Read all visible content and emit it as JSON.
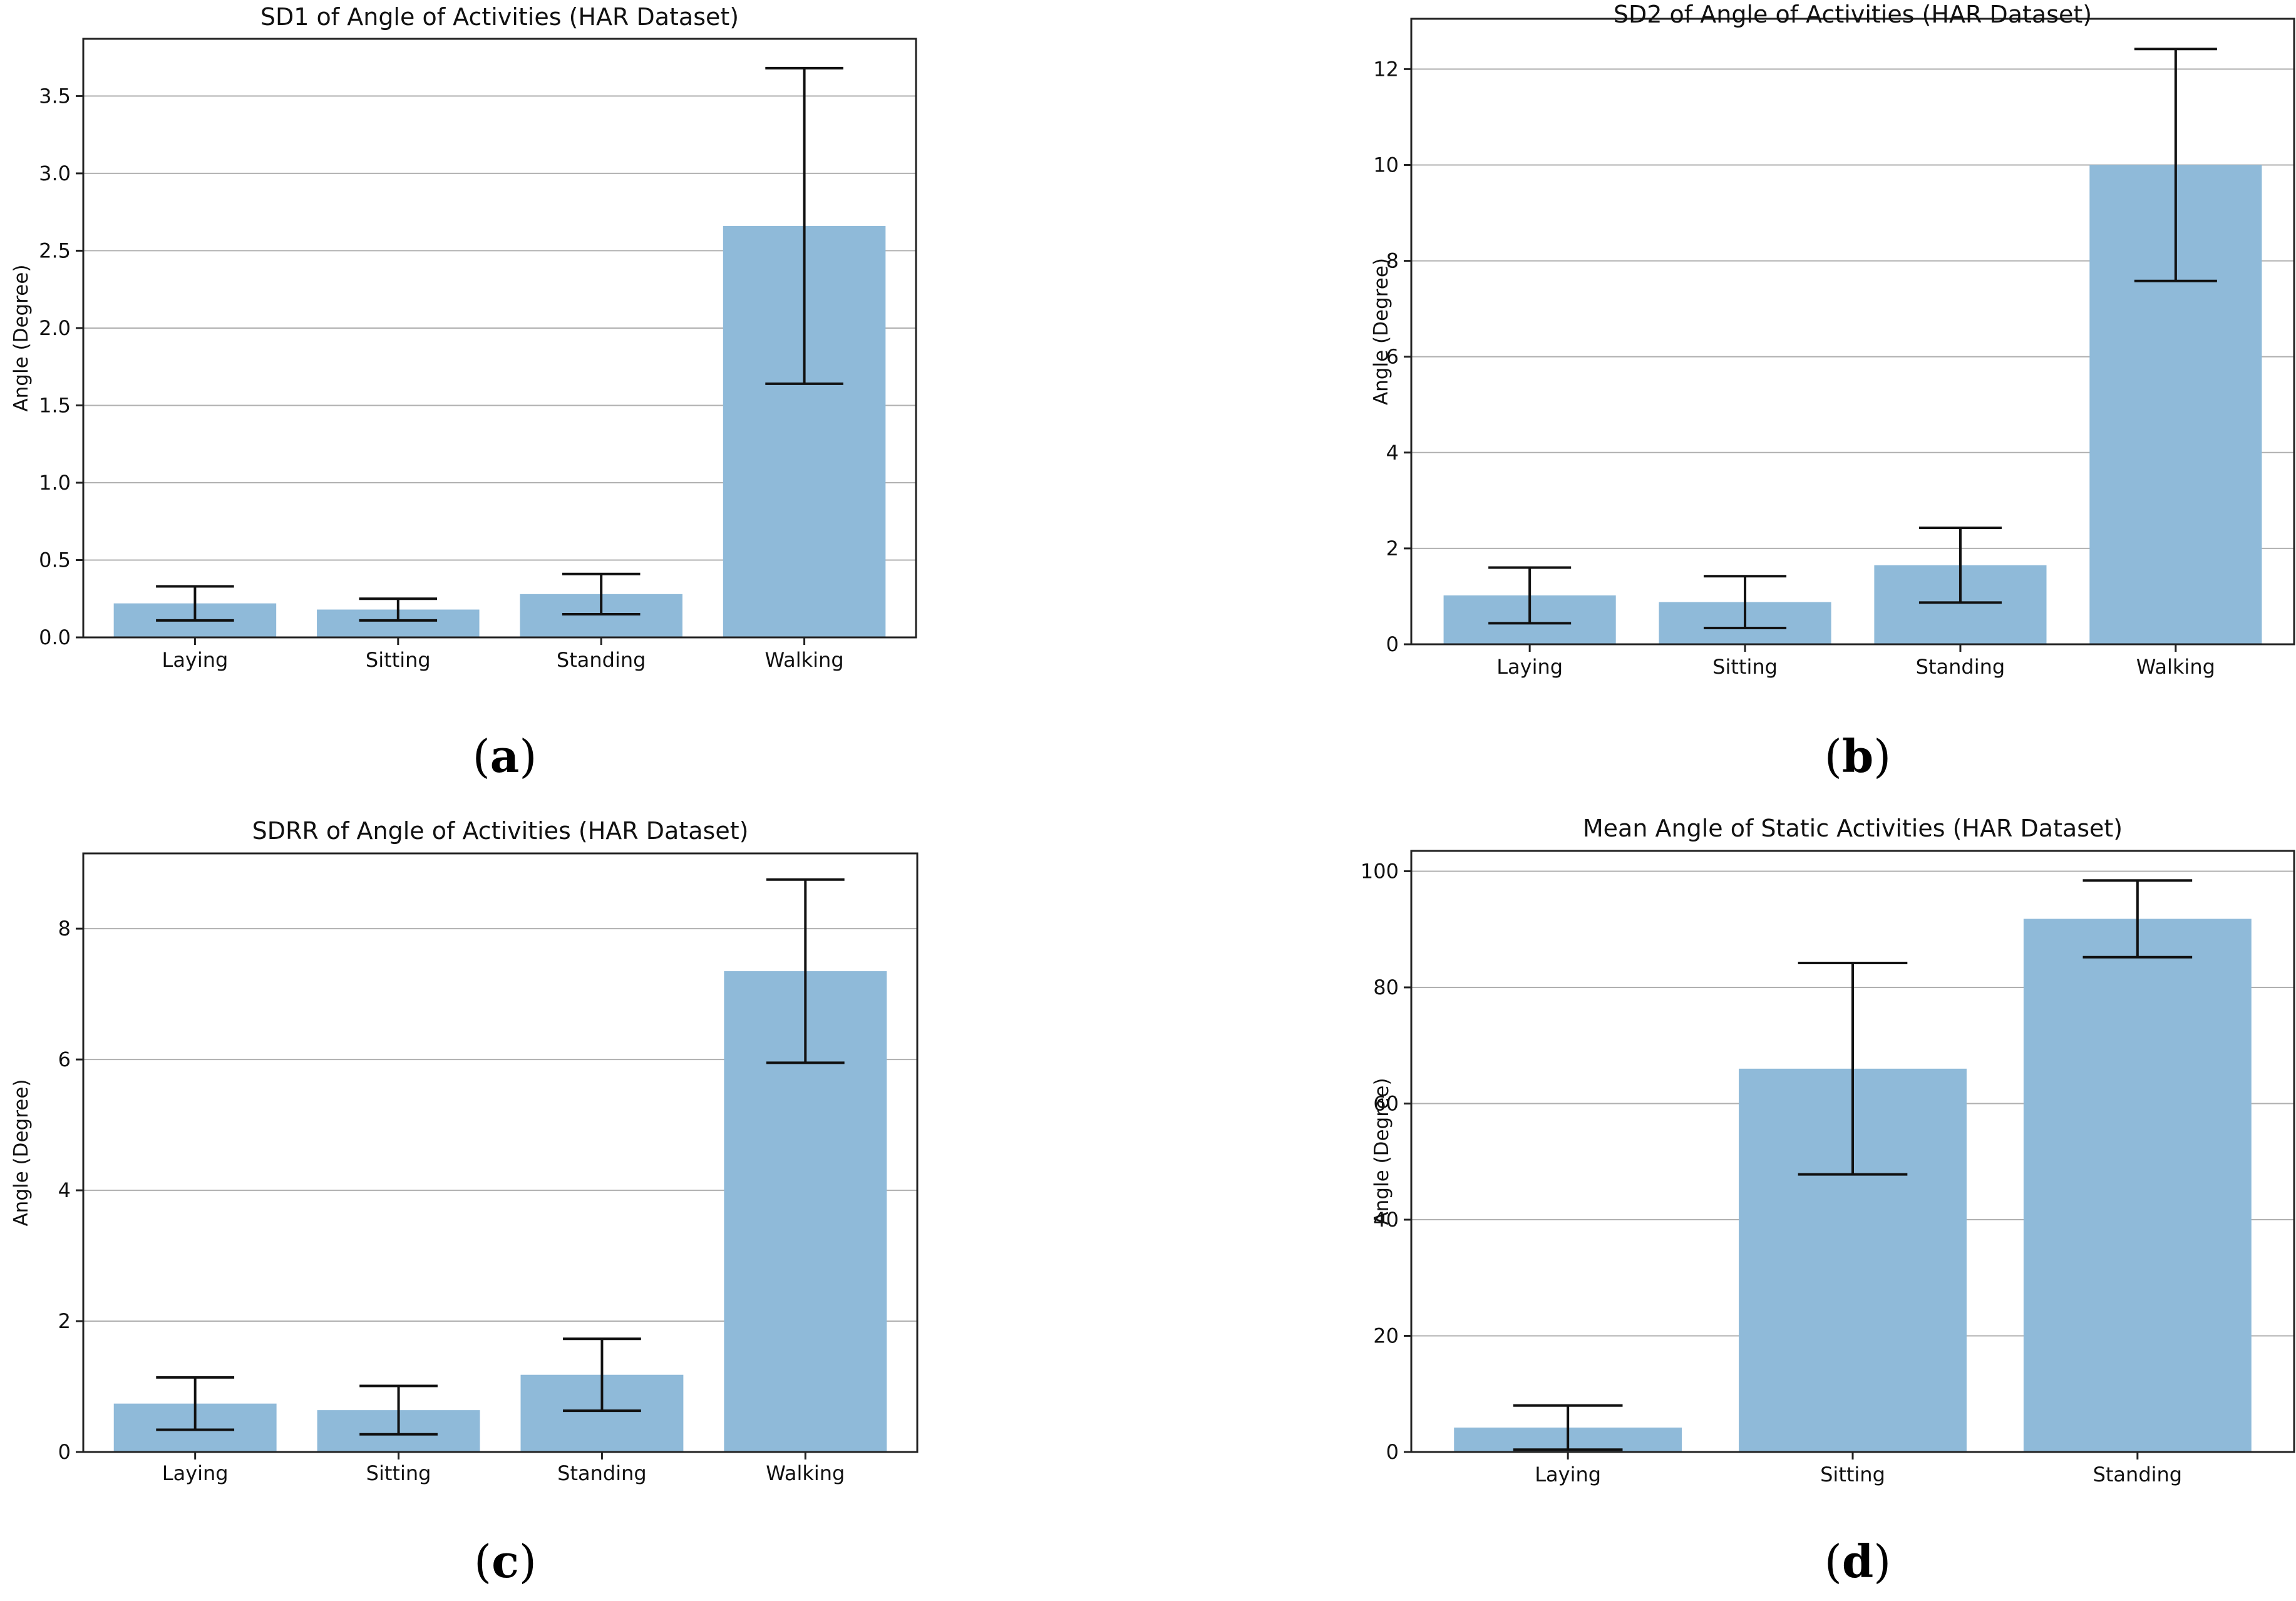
{
  "colors": {
    "bar": "#8fbad9",
    "axis": "#222222",
    "grid": "#b0b0b0",
    "error": "#111111"
  },
  "chart_data": [
    {
      "id": "a",
      "type": "bar",
      "panel_label": "a",
      "title": "SD1 of Angle of Activities (HAR Dataset)",
      "xlabel": "",
      "ylabel": "Angle (Degree)",
      "categories": [
        "Laying",
        "Sitting",
        "Standing",
        "Walking"
      ],
      "values": [
        0.22,
        0.18,
        0.28,
        2.66
      ],
      "error": [
        0.11,
        0.07,
        0.13,
        1.02
      ],
      "ylim": [
        0,
        3.87
      ],
      "yticks": [
        0.0,
        0.5,
        1.0,
        1.5,
        2.0,
        2.5,
        3.0,
        3.5
      ],
      "ytick_labels": [
        "0.0",
        "0.5",
        "1.0",
        "1.5",
        "2.0",
        "2.5",
        "3.0",
        "3.5"
      ],
      "grid": "y"
    },
    {
      "id": "b",
      "type": "bar",
      "panel_label": "b",
      "title": "SD2 of Angle of Activities (HAR Dataset)",
      "xlabel": "",
      "ylabel": "Angle (Degree)",
      "categories": [
        "Laying",
        "Sitting",
        "Standing",
        "Walking"
      ],
      "values": [
        1.02,
        0.88,
        1.65,
        10.0
      ],
      "error": [
        0.58,
        0.54,
        0.78,
        2.42
      ],
      "ylim": [
        0,
        13.05
      ],
      "yticks": [
        0,
        2,
        4,
        6,
        8,
        10,
        12
      ],
      "ytick_labels": [
        "0",
        "2",
        "4",
        "6",
        "8",
        "10",
        "12"
      ],
      "grid": "y"
    },
    {
      "id": "c",
      "type": "bar",
      "panel_label": "c",
      "title": "SDRR of Angle of Activities (HAR Dataset)",
      "xlabel": "",
      "ylabel": "Angle (Degree)",
      "categories": [
        "Laying",
        "Sitting",
        "Standing",
        "Walking"
      ],
      "values": [
        0.74,
        0.64,
        1.18,
        7.35
      ],
      "error": [
        0.4,
        0.37,
        0.55,
        1.4
      ],
      "ylim": [
        0,
        9.15
      ],
      "yticks": [
        0,
        2,
        4,
        6,
        8
      ],
      "ytick_labels": [
        "0",
        "2",
        "4",
        "6",
        "8"
      ],
      "grid": "y"
    },
    {
      "id": "d",
      "type": "bar",
      "panel_label": "d",
      "title": "Mean Angle of Static Activities (HAR Dataset)",
      "xlabel": "",
      "ylabel": "Angle (Degree)",
      "categories": [
        "Laying",
        "Sitting",
        "Standing"
      ],
      "values": [
        4.2,
        66.0,
        91.8
      ],
      "error": [
        3.8,
        18.2,
        6.6
      ],
      "ylim": [
        0,
        103.5
      ],
      "yticks": [
        0,
        20,
        40,
        60,
        80,
        100
      ],
      "ytick_labels": [
        "0",
        "20",
        "40",
        "60",
        "80",
        "100"
      ],
      "grid": "y"
    }
  ]
}
